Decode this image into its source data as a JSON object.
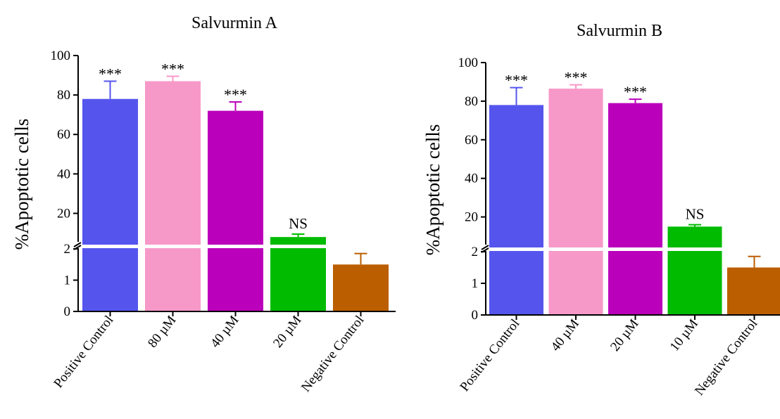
{
  "chart_data": [
    {
      "type": "bar",
      "title": "Salvurmin A",
      "ylabel": "%Apoptotic cells",
      "xlabel": "",
      "y_axis_break": {
        "lower": [
          0,
          2
        ],
        "upper": [
          2,
          100
        ]
      },
      "yticks_lower": [
        "0",
        "1",
        "2"
      ],
      "yticks_upper": [
        "20",
        "40",
        "60",
        "80",
        "100"
      ],
      "categories": [
        "Positive Control",
        "80 µM",
        "40 µM",
        "20 µM",
        "Negative Control"
      ],
      "values": [
        78,
        87,
        72,
        8,
        1.5
      ],
      "errors": [
        9,
        2.5,
        4.5,
        1.5,
        0.35
      ],
      "significance": [
        "***",
        "***",
        "***",
        "NS",
        ""
      ],
      "colors": [
        "#5555ee",
        "#f799c8",
        "#bb00bb",
        "#00bb00",
        "#bb5e00"
      ]
    },
    {
      "type": "bar",
      "title": "Salvurmin B",
      "ylabel": "%Apoptotic cells",
      "xlabel": "",
      "y_axis_break": {
        "lower": [
          0,
          2
        ],
        "upper": [
          2,
          100
        ]
      },
      "yticks_lower": [
        "0",
        "1",
        "2"
      ],
      "yticks_upper": [
        "20",
        "40",
        "60",
        "80",
        "100"
      ],
      "categories": [
        "Positive Control",
        "40 µM",
        "20 µM",
        "10 µM",
        "Negative Control"
      ],
      "values": [
        78,
        86.5,
        79,
        15,
        1.5
      ],
      "errors": [
        9,
        2,
        2,
        1,
        0.35
      ],
      "significance": [
        "***",
        "***",
        "***",
        "NS",
        ""
      ],
      "colors": [
        "#5555ee",
        "#f799c8",
        "#bb00bb",
        "#00bb00",
        "#bb5e00"
      ]
    }
  ]
}
